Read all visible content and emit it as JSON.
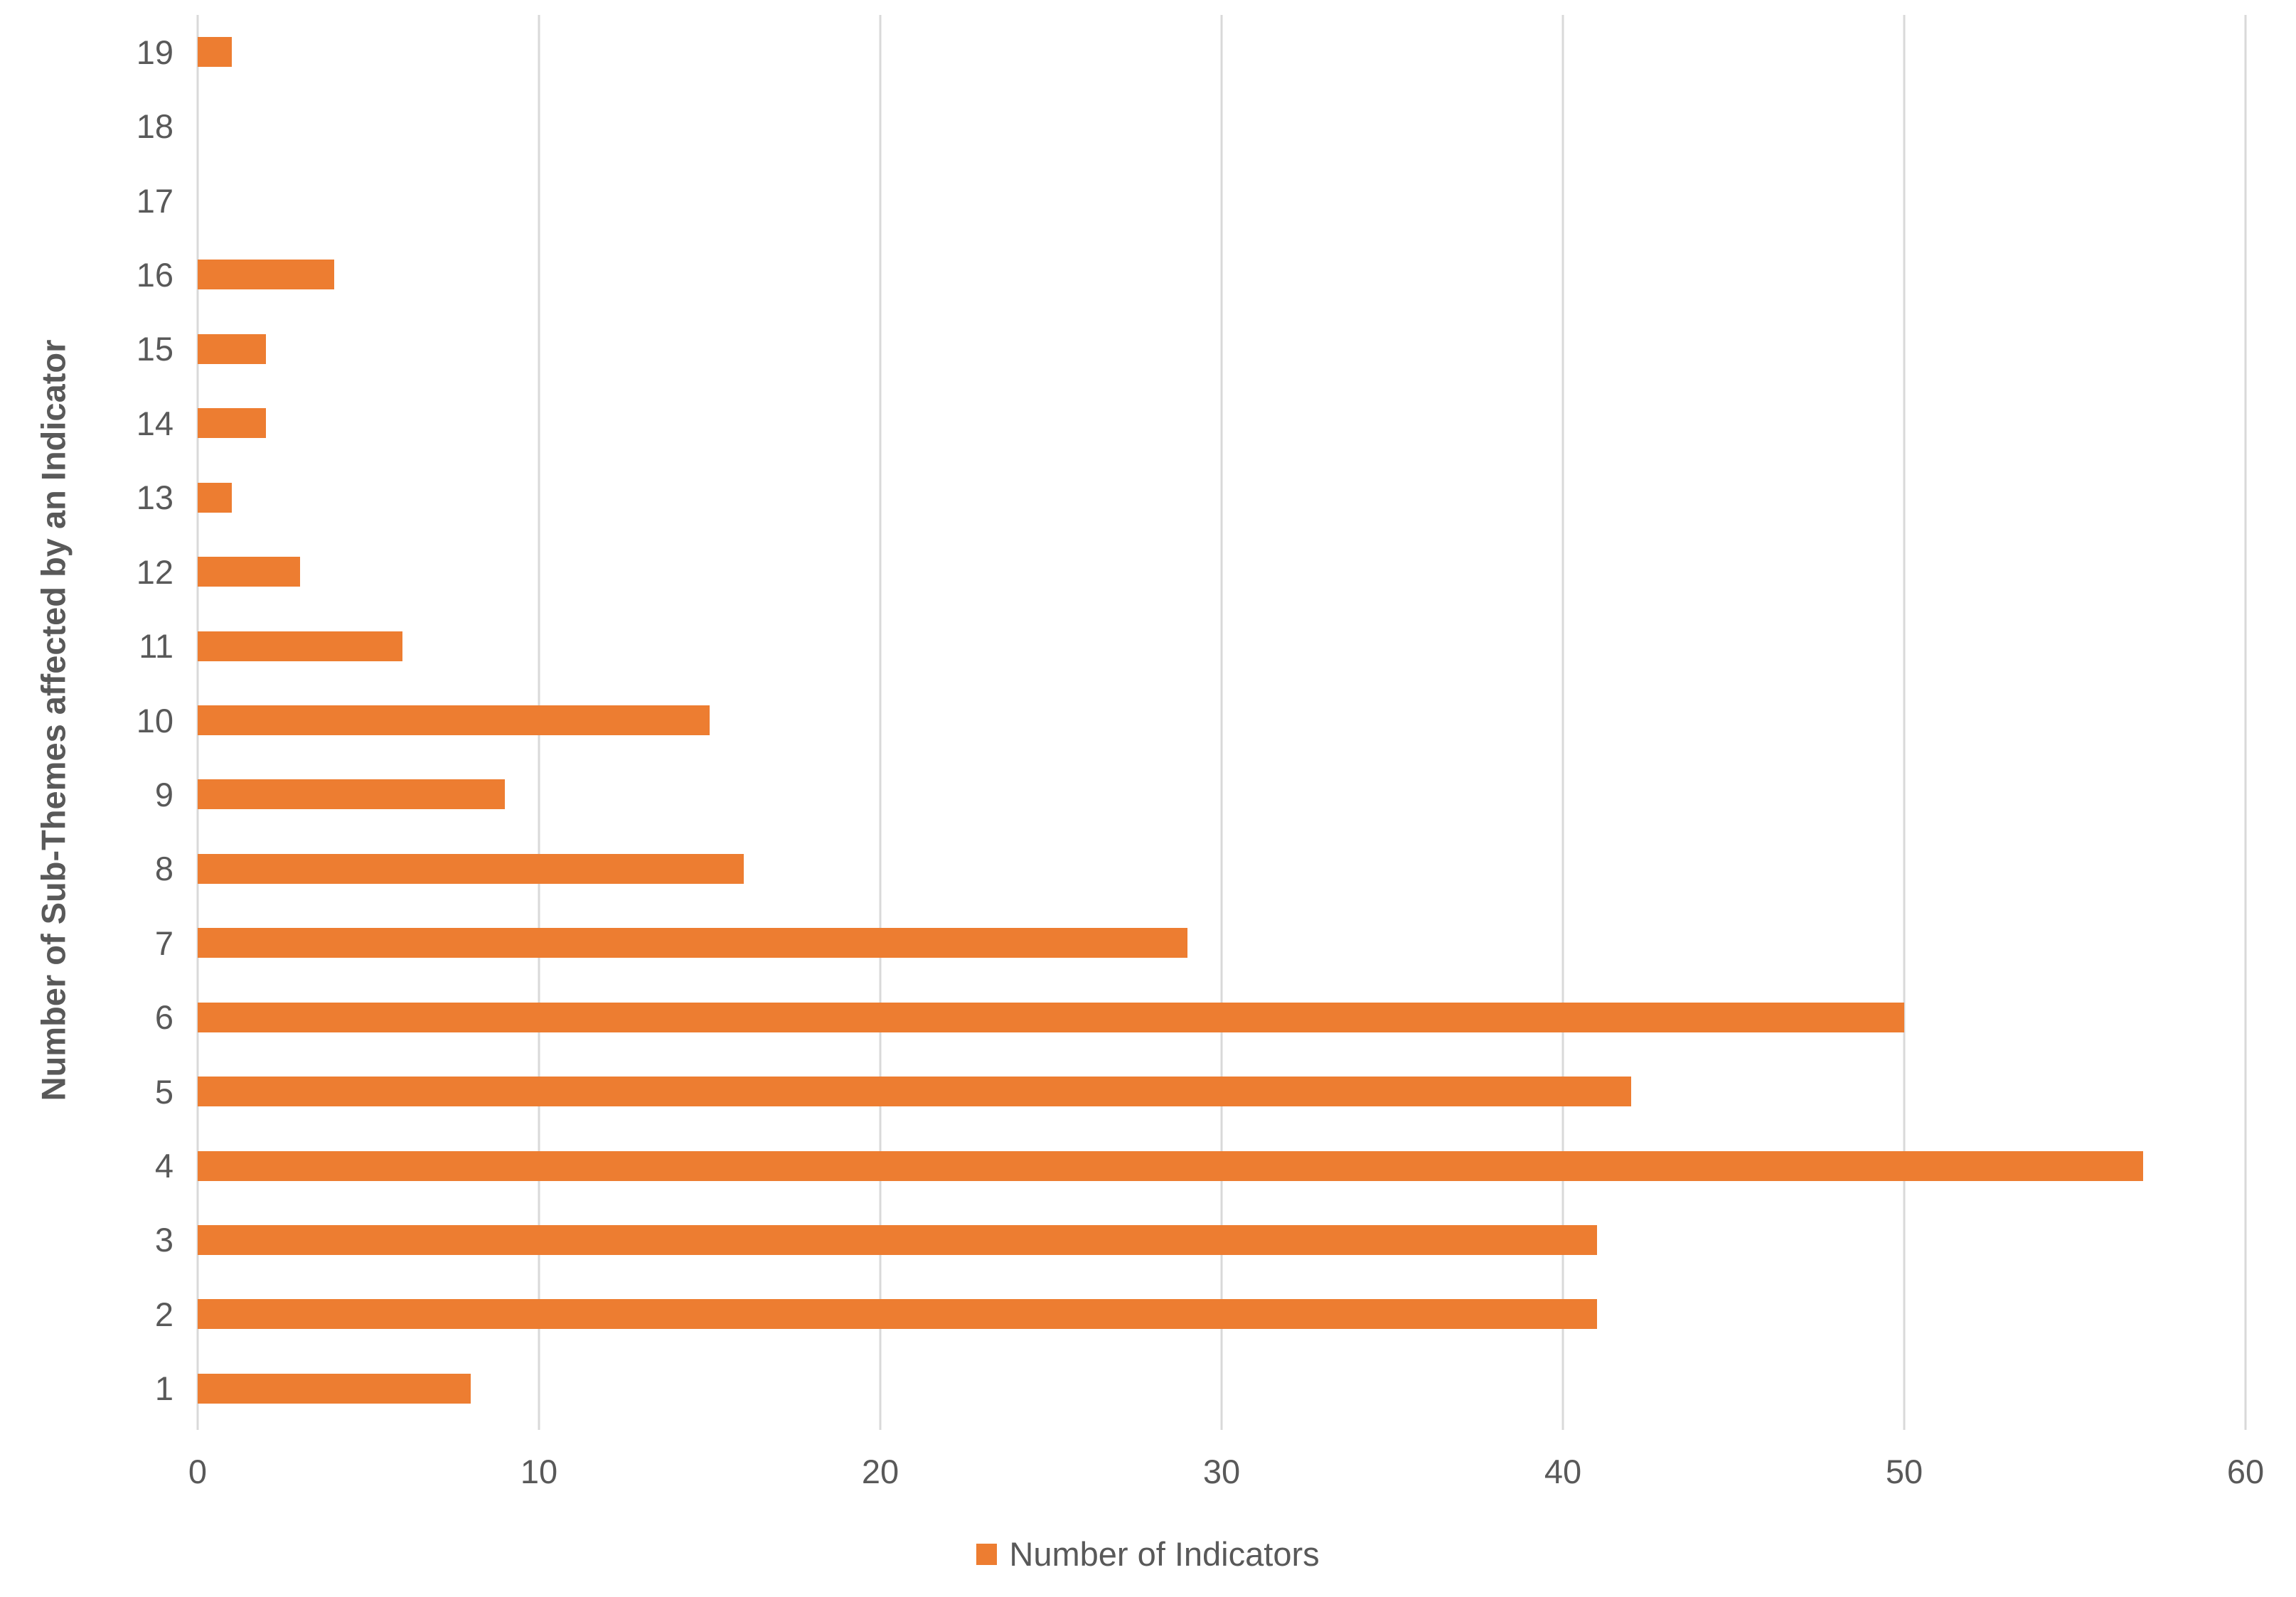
{
  "chart_data": {
    "type": "bar",
    "orientation": "horizontal",
    "title": "",
    "xlabel": "",
    "ylabel": "Number of Sub-Themes affected by an Indicator",
    "categories": [
      1,
      2,
      3,
      4,
      5,
      6,
      7,
      8,
      9,
      10,
      11,
      12,
      13,
      14,
      15,
      16,
      17,
      18,
      19
    ],
    "series": [
      {
        "name": "Number of Indicators",
        "values": [
          8,
          41,
          41,
          57,
          42,
          50,
          29,
          16,
          9,
          15,
          6,
          3,
          1,
          2,
          2,
          4,
          0,
          0,
          1
        ]
      }
    ],
    "category_order_on_screen": "19 at top, 1 at bottom",
    "xlim": [
      0,
      60
    ],
    "x_ticks": [
      0,
      10,
      20,
      30,
      40,
      50,
      60
    ],
    "grid": "vertical",
    "legend": {
      "position": "bottom-center",
      "label": "Number of Indicators"
    },
    "colors": {
      "bar": "#ED7D31",
      "gridline": "#D9D9D9",
      "text": "#595959",
      "background": "#FFFFFF"
    }
  }
}
